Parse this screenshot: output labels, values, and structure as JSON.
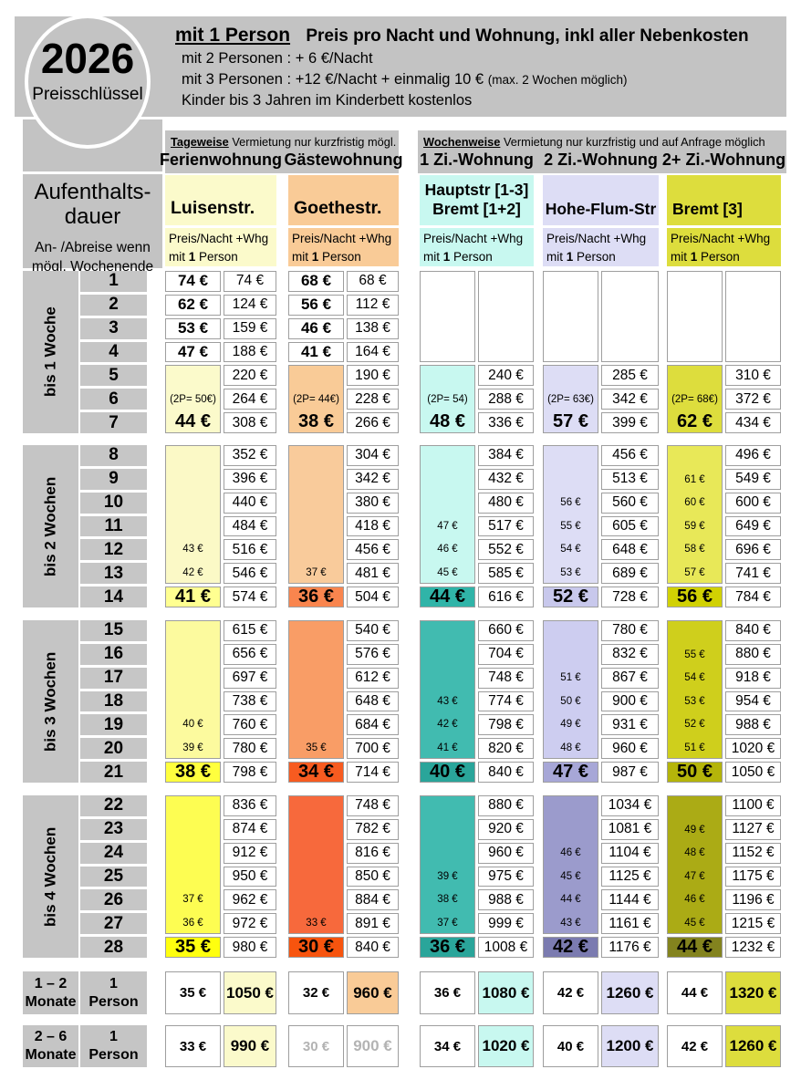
{
  "badge": {
    "year": "2026",
    "label": "Preisschlüssel"
  },
  "info_banner": {
    "line1_emph": "mit 1 Person",
    "line1_rest": "Preis pro Nacht und Wohnung, inkl aller Nebenkosten",
    "line2": "mit 2 Personen :  + 6 €/Nacht",
    "line3": "mit 3 Personen :  +12 €/Nacht + einmalig 10 €",
    "line3_small": " (max. 2 Wochen möglich)",
    "line4": "Kinder bis 3 Jahren im Kinderbett kostenlos"
  },
  "section_banners": [
    {
      "emph": "Tageweise",
      "rest": " Vermietung nur kurzfristig mögl."
    },
    {
      "emph": "Wochenweise",
      "rest": " Vermietung nur kurzfristig und auf Anfrage möglich"
    }
  ],
  "sidebar": {
    "title_line1": "Aufenthalts-",
    "title_line2": "dauer",
    "note_line1": "An- /Abreise wenn",
    "note_line2": "mögl. Wochenende",
    "duration_blocks": [
      {
        "label": "bis 1 Woche",
        "days": [
          "1",
          "2",
          "3",
          "4",
          "5",
          "6",
          "7"
        ]
      },
      {
        "label": "bis 2 Wochen",
        "days": [
          "8",
          "9",
          "10",
          "11",
          "12",
          "13",
          "14"
        ]
      },
      {
        "label": "bis 3 Wochen",
        "days": [
          "15",
          "16",
          "17",
          "18",
          "19",
          "20",
          "21"
        ]
      },
      {
        "label": "bis 4 Wochen",
        "days": [
          "22",
          "23",
          "24",
          "25",
          "26",
          "27",
          "28"
        ]
      }
    ],
    "month_rows": [
      {
        "duration_l1": "1 – 2",
        "duration_l2": "Monate",
        "person_l1": "1",
        "person_l2": "Person"
      },
      {
        "duration_l1": "2 – 6",
        "duration_l2": "Monate",
        "person_l1": "1",
        "person_l2": "Person"
      }
    ]
  },
  "price_sub": {
    "line1": "Preis/Nacht +Whg",
    "line2_pre": "mit ",
    "line2_bold": "1",
    "line2_post": " Person"
  },
  "columns": [
    {
      "section": "tageweise",
      "type_label": "Ferienwohnung",
      "name_lines": [
        "Luisenstr."
      ],
      "name_align": "left",
      "colors": {
        "base": "#FBFACB",
        "b2": "#FBF9C6",
        "b2hl": "#FFFF91",
        "b3": "#FCFA9E",
        "b3hl": "#FFFF3E",
        "b4": "#FDFD52",
        "b4hl": "#FFFF0F"
      },
      "week1": {
        "nights": [
          "74 €",
          "62 €",
          "53 €",
          "47 €"
        ],
        "totals": [
          "74 €",
          "124 €",
          "159 €",
          "188 €"
        ],
        "p2_note": "(2P= 50€)",
        "week_price": "44 €",
        "week_totals": [
          "220 €",
          "264 €",
          "308 €"
        ]
      },
      "blocks": [
        {
          "nights": [
            "",
            "",
            "",
            "",
            "43 €",
            "42 €"
          ],
          "final_price": "41 €",
          "totals": [
            "352 €",
            "396 €",
            "440 €",
            "484 €",
            "516 €",
            "546 €",
            "574 €"
          ]
        },
        {
          "nights": [
            "",
            "",
            "",
            "",
            "40 €",
            "39 €"
          ],
          "final_price": "38 €",
          "totals": [
            "615 €",
            "656 €",
            "697 €",
            "738 €",
            "760 €",
            "780 €",
            "798 €"
          ]
        },
        {
          "nights": [
            "",
            "",
            "",
            "",
            "37 €",
            "36 €"
          ],
          "final_price": "35 €",
          "totals": [
            "836 €",
            "874 €",
            "912 €",
            "950 €",
            "962 €",
            "972 €",
            "980 €"
          ]
        }
      ],
      "month_rows": [
        {
          "night": "35 €",
          "total": "1050 €"
        },
        {
          "night": "33 €",
          "total": "990 €"
        }
      ]
    },
    {
      "section": "tageweise",
      "type_label": "Gästewohnung",
      "name_lines": [
        "Goethestr."
      ],
      "name_align": "left",
      "colors": {
        "base": "#F9CB97",
        "b2": "#F9CB9B",
        "b2hl": "#F9854E",
        "b3": "#F99D66",
        "b3hl": "#F75B20",
        "b4": "#F7693C",
        "b4hl": "#F7540E"
      },
      "week1": {
        "nights": [
          "68 €",
          "56 €",
          "46 €",
          "41 €"
        ],
        "totals": [
          "68 €",
          "112 €",
          "138 €",
          "164 €"
        ],
        "p2_note": "(2P= 44€)",
        "week_price": "38 €",
        "week_totals": [
          "190 €",
          "228 €",
          "266 €"
        ]
      },
      "blocks": [
        {
          "nights": [
            "",
            "",
            "",
            "",
            "",
            "37 €"
          ],
          "final_price": "36 €",
          "totals": [
            "304 €",
            "342 €",
            "380 €",
            "418 €",
            "456 €",
            "481 €",
            "504 €"
          ]
        },
        {
          "nights": [
            "",
            "",
            "",
            "",
            "",
            "35 €"
          ],
          "final_price": "34 €",
          "totals": [
            "540 €",
            "576 €",
            "612 €",
            "648 €",
            "684 €",
            "700 €",
            "714 €"
          ]
        },
        {
          "nights": [
            "",
            "",
            "",
            "",
            "",
            "33 €"
          ],
          "final_price": "30 €",
          "totals": [
            "748 €",
            "782 €",
            "816 €",
            "850 €",
            "884 €",
            "891 €",
            "840 €"
          ]
        }
      ],
      "month_rows": [
        {
          "night": "32 €",
          "total": "960 €"
        },
        {
          "night": "30 €",
          "total": "900 €",
          "muted": true
        }
      ]
    },
    {
      "section": "wochenweise",
      "type_label": "1 Zi.-Wohnung",
      "name_lines": [
        "Hauptstr [1-3]",
        "Bremt [1+2]"
      ],
      "name_align": "center",
      "colors": {
        "base": "#C8F8F0",
        "b2": "#C8F8F0",
        "b2hl": "#30B4A8",
        "b3": "#41BBB0",
        "b3hl": "#2AA59A",
        "b4": "#41BBB0",
        "b4hl": "#2AA59A"
      },
      "week1": {
        "nights": [],
        "totals": [],
        "p2_note": "(2P= 54)",
        "week_price": "48 €",
        "week_totals": [
          "240 €",
          "288 €",
          "336 €"
        ]
      },
      "blocks": [
        {
          "nights": [
            "",
            "",
            "",
            "47 €",
            "46 €",
            "45 €"
          ],
          "final_price": "44 €",
          "totals": [
            "384 €",
            "432 €",
            "480 €",
            "517 €",
            "552 €",
            "585 €",
            "616 €"
          ]
        },
        {
          "nights": [
            "",
            "",
            "",
            "43 €",
            "42 €",
            "41 €"
          ],
          "final_price": "40 €",
          "totals": [
            "660 €",
            "704 €",
            "748 €",
            "774 €",
            "798 €",
            "820 €",
            "840 €"
          ]
        },
        {
          "nights": [
            "",
            "",
            "",
            "39 €",
            "38 €",
            "37 €"
          ],
          "final_price": "36 €",
          "totals": [
            "880 €",
            "920 €",
            "960 €",
            "975 €",
            "988 €",
            "999 €",
            "1008 €"
          ]
        }
      ],
      "month_rows": [
        {
          "night": "36 €",
          "total": "1080 €"
        },
        {
          "night": "34 €",
          "total": "1020 €"
        }
      ]
    },
    {
      "section": "wochenweise",
      "type_label": "2 Zi.-Wohnung",
      "name_lines": [
        "Hohe-Flum-Str"
      ],
      "name_align": "center",
      "colors": {
        "base": "#DDDDF5",
        "b2": "#DDDDF5",
        "b2hl": "#C8C8EC",
        "b3": "#CDCDF0",
        "b3hl": "#A7A7D7",
        "b4": "#9B9BCC",
        "b4hl": "#7B7BB0"
      },
      "week1": {
        "nights": [],
        "totals": [],
        "p2_note": "(2P= 63€)",
        "week_price": "57 €",
        "week_totals": [
          "285 €",
          "342 €",
          "399 €"
        ]
      },
      "blocks": [
        {
          "nights": [
            "",
            "",
            "56 €",
            "55 €",
            "54 €",
            "53 €"
          ],
          "final_price": "52 €",
          "totals": [
            "456 €",
            "513 €",
            "560 €",
            "605 €",
            "648 €",
            "689 €",
            "728 €"
          ]
        },
        {
          "nights": [
            "",
            "",
            "51 €",
            "50 €",
            "49 €",
            "48 €"
          ],
          "final_price": "47 €",
          "totals": [
            "780 €",
            "832 €",
            "867 €",
            "900 €",
            "931 €",
            "960 €",
            "987 €"
          ]
        },
        {
          "nights": [
            "",
            "",
            "46 €",
            "45 €",
            "44 €",
            "43 €"
          ],
          "final_price": "42 €",
          "totals": [
            "1034 €",
            "1081 €",
            "1104 €",
            "1125 €",
            "1144 €",
            "1161 €",
            "1176 €"
          ]
        }
      ],
      "month_rows": [
        {
          "night": "42 €",
          "total": "1260 €"
        },
        {
          "night": "40 €",
          "total": "1200 €"
        }
      ]
    },
    {
      "section": "wochenweise",
      "type_label": "2+ Zi.-Wohnung",
      "name_lines": [
        "Bremt [3]"
      ],
      "name_align": "left",
      "colors": {
        "base": "#DDDD3D",
        "b2": "#E8E858",
        "b2hl": "#D1D103",
        "b3": "#CFCF1C",
        "b3hl": "#B4B40A",
        "b4": "#ABAB15",
        "b4hl": "#83831E"
      },
      "week1": {
        "nights": [],
        "totals": [],
        "p2_note": "(2P= 68€)",
        "week_price": "62 €",
        "week_totals": [
          "310 €",
          "372 €",
          "434 €"
        ]
      },
      "blocks": [
        {
          "nights": [
            "",
            "61 €",
            "60 €",
            "59 €",
            "58 €",
            "57 €"
          ],
          "final_price": "56 €",
          "totals": [
            "496 €",
            "549 €",
            "600 €",
            "649 €",
            "696 €",
            "741 €",
            "784 €"
          ]
        },
        {
          "nights": [
            "",
            "55 €",
            "54 €",
            "53 €",
            "52 €",
            "51 €"
          ],
          "final_price": "50 €",
          "totals": [
            "840 €",
            "880 €",
            "918 €",
            "954 €",
            "988 €",
            "1020 €",
            "1050 €"
          ]
        },
        {
          "nights": [
            "",
            "49 €",
            "48 €",
            "47 €",
            "46 €",
            "45 €"
          ],
          "final_price": "44 €",
          "totals": [
            "1100 €",
            "1127 €",
            "1152 €",
            "1175 €",
            "1196 €",
            "1215 €",
            "1232 €"
          ]
        }
      ],
      "month_rows": [
        {
          "night": "44 €",
          "total": "1320 €"
        },
        {
          "night": "42 €",
          "total": "1260 €"
        }
      ]
    }
  ]
}
